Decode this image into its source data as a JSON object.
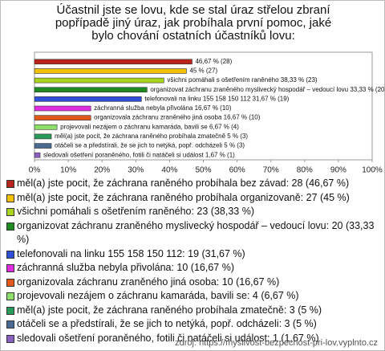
{
  "chart_data": {
    "type": "hbar",
    "title": "Účastnil jste se lovu, kde se stal úraz střelou zbraní popřípadě jiný úraz, jak probíhala první pomoc, jaké bylo chování ostatních účastníků lovu:",
    "categories": [
      "měl(a) jste pocit, že záchrana raněného probíhala bez závad",
      "měl(a) jste pocit, že záchrana raněného probíhala organizovaně",
      "všichni pomáhali s ošetřením raněného",
      "organizovat záchranu zraněného myslivecký hospodář – vedoucí lovu",
      "telefonovali na linku 155 158 150 112",
      "záchranná služba nebyla přivolána",
      "organizovala záchranu zraněného jiná osoba",
      "projevovali nezájem o záchranu kamaráda, bavili se",
      "měl(a) jste pocit, že záchrana raněného probíhala zmatečně",
      "otáčeli se a předstírali, že se jich to netýká, popř. odcházeli",
      "sledovali ošetření poraněného, fotili či natáčeli si událost"
    ],
    "values": [
      46.67,
      45,
      38.33,
      33.33,
      31.67,
      16.67,
      16.67,
      6.67,
      5,
      5,
      1.67
    ],
    "value_labels": [
      "46,67 % (28)",
      "45 % (27)",
      "všichni pomáhali s ošetřením raněného 38,33 % (23)",
      "organizovat záchranu zraněného myslivecký hospodář – vedoucí lovu 33,33 % (20)",
      "telefonovali na linku 155 158 150 112 31,67 % (19)",
      "záchranná služba nebyla přivolána 16,67 % (10)",
      "organizovala záchranu zraněného jiná osoba 16,67 % (10)",
      "projevovali nezájem o záchranu kamaráda, bavili se 6,67 % (4)",
      "měl(a) jste pocit, že záchrana raněného probíhala zmatečně 5 % (3)",
      "otáčeli se a předstírali, že se jich to netýká, popř. odcházeli 5 % (3)",
      "sledovali ošetření poraněného, fotili či natáčeli si událost 1,67 % (1)"
    ],
    "legend": [
      "měl(a) jste pocit, že záchrana raněného probíhala bez závad: 28 (46,67 %)",
      "měl(a) jste pocit, že záchrana raněného probíhala organizovaně: 27 (45 %)",
      "všichni pomáhali s ošetřením raněného: 23 (38,33 %)",
      "organizovat záchranu zraněného myslivecký hospodář – vedoucí lovu: 20 (33,33 %)",
      "telefonovali na linku 155 158 150 112: 19 (31,67 %)",
      "záchranná služba nebyla přivolána: 10 (16,67 %)",
      "organizovala záchranu zraněného jiná osoba: 10 (16,67 %)",
      "projevovali nezájem o záchranu kamaráda, bavili se: 4 (6,67 %)",
      "měl(a) jste pocit, že záchrana raněného probíhala zmatečně: 3 (5 %)",
      "otáčeli se a předstírali, že se jich to netýká, popř. odcházeli: 3 (5 %)",
      "sledovali ošetření poraněného, fotili či natáčeli si událost: 1 (1,67 %)"
    ],
    "colors": [
      "#b8231c",
      "#f2c200",
      "#a8d41e",
      "#1d8a22",
      "#2f4fd6",
      "#e02ce0",
      "#e2571a",
      "#8fe06a",
      "#2a9a58",
      "#4b6a92",
      "#8a5fbf",
      "#e0822a"
    ],
    "xlim": [
      0,
      100
    ],
    "xticks": [
      {
        "value": 0,
        "label": "0%"
      },
      {
        "value": 10,
        "label": "10%"
      },
      {
        "value": 20,
        "label": "20%"
      },
      {
        "value": 30,
        "label": "30%"
      },
      {
        "value": 40,
        "label": "40%"
      },
      {
        "value": 50,
        "label": "50%"
      },
      {
        "value": 60,
        "label": "60%"
      },
      {
        "value": 70,
        "label": "70%"
      },
      {
        "value": 80,
        "label": "80%"
      },
      {
        "value": 90,
        "label": "90%"
      },
      {
        "value": 100,
        "label": "100%"
      }
    ],
    "source": "zdroj: https://myslivost-bezpecnost-pri-lov.vyplnto.cz"
  }
}
